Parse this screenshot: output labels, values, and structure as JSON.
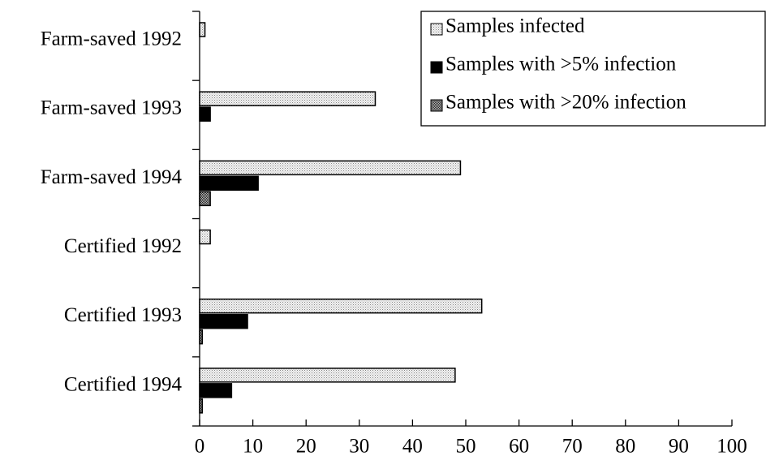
{
  "chart_data": {
    "type": "barh",
    "categories": [
      "Farm-saved 1992",
      "Farm-saved 1993",
      "Farm-saved 1994",
      "Certified 1992",
      "Certified 1993",
      "Certified 1994"
    ],
    "series": [
      {
        "name": "Samples infected",
        "color": "#d9d9d9",
        "values": [
          1,
          33,
          49,
          2,
          53,
          48
        ]
      },
      {
        "name": "Samples with >5% infection",
        "color": "#000000",
        "values": [
          0,
          2,
          11,
          0,
          9,
          6
        ]
      },
      {
        "name": "Samples with >20% infection",
        "color": "#777777",
        "values": [
          0,
          0,
          2,
          0,
          0.5,
          0.5
        ]
      }
    ],
    "xlim": [
      0,
      100
    ],
    "xticks": [
      0,
      10,
      20,
      30,
      40,
      50,
      60,
      70,
      80,
      90,
      100
    ],
    "legend": "upper right"
  }
}
